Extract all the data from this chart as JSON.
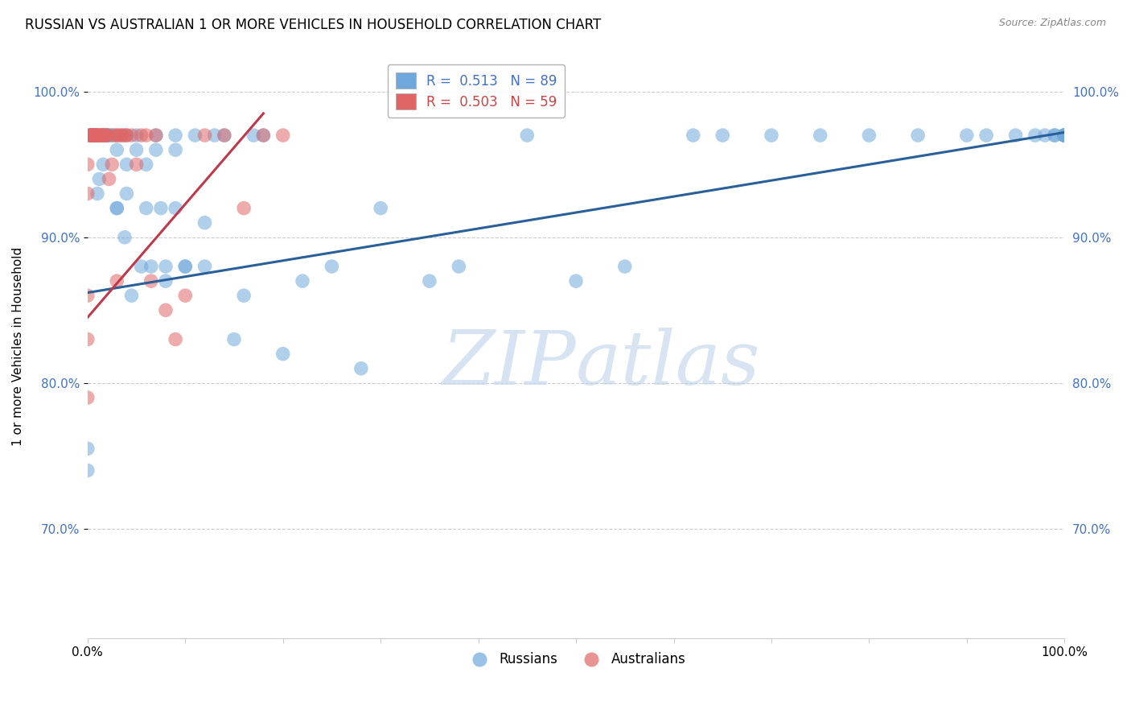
{
  "title": "RUSSIAN VS AUSTRALIAN 1 OR MORE VEHICLES IN HOUSEHOLD CORRELATION CHART",
  "source": "Source: ZipAtlas.com",
  "ylabel": "1 or more Vehicles in Household",
  "ytick_labels": [
    "100.0%",
    "90.0%",
    "80.0%",
    "70.0%"
  ],
  "ytick_values": [
    1.0,
    0.9,
    0.8,
    0.7
  ],
  "xlim": [
    0.0,
    1.0
  ],
  "ylim": [
    0.625,
    1.025
  ],
  "blue_color": "#6fa8dc",
  "pink_color": "#e06666",
  "trendline_blue": "#2a6099",
  "trendline_pink": "#c0394b",
  "watermark_zip": "ZIP",
  "watermark_atlas": "atlas",
  "russians_x": [
    0.0,
    0.0,
    0.003,
    0.003,
    0.004,
    0.004,
    0.004,
    0.005,
    0.005,
    0.005,
    0.005,
    0.006,
    0.007,
    0.008,
    0.009,
    0.01,
    0.01,
    0.012,
    0.015,
    0.015,
    0.016,
    0.018,
    0.02,
    0.02,
    0.022,
    0.025,
    0.025,
    0.03,
    0.03,
    0.03,
    0.035,
    0.038,
    0.04,
    0.04,
    0.04,
    0.045,
    0.05,
    0.05,
    0.055,
    0.06,
    0.06,
    0.065,
    0.07,
    0.07,
    0.075,
    0.08,
    0.08,
    0.09,
    0.09,
    0.09,
    0.1,
    0.1,
    0.11,
    0.12,
    0.12,
    0.13,
    0.14,
    0.15,
    0.16,
    0.17,
    0.18,
    0.2,
    0.22,
    0.25,
    0.28,
    0.3,
    0.35,
    0.38,
    0.45,
    0.5,
    0.55,
    0.62,
    0.65,
    0.7,
    0.75,
    0.8,
    0.85,
    0.9,
    0.92,
    0.95,
    0.97,
    0.98,
    0.99,
    0.99,
    1.0,
    1.0,
    1.0,
    1.0,
    1.0,
    1.0,
    1.0
  ],
  "russians_y": [
    0.74,
    0.755,
    0.97,
    0.97,
    0.97,
    0.97,
    0.97,
    0.97,
    0.97,
    0.97,
    0.97,
    0.97,
    0.97,
    0.97,
    0.97,
    0.97,
    0.93,
    0.94,
    0.97,
    0.97,
    0.95,
    0.97,
    0.97,
    0.97,
    0.97,
    0.97,
    0.97,
    0.92,
    0.92,
    0.96,
    0.97,
    0.9,
    0.93,
    0.95,
    0.97,
    0.86,
    0.97,
    0.96,
    0.88,
    0.92,
    0.95,
    0.88,
    0.96,
    0.97,
    0.92,
    0.87,
    0.88,
    0.92,
    0.96,
    0.97,
    0.88,
    0.88,
    0.97,
    0.88,
    0.91,
    0.97,
    0.97,
    0.83,
    0.86,
    0.97,
    0.97,
    0.82,
    0.87,
    0.88,
    0.81,
    0.92,
    0.87,
    0.88,
    0.97,
    0.87,
    0.88,
    0.97,
    0.97,
    0.97,
    0.97,
    0.97,
    0.97,
    0.97,
    0.97,
    0.97,
    0.97,
    0.97,
    0.97,
    0.97,
    0.97,
    0.97,
    0.97,
    0.97,
    0.97,
    0.97,
    0.97
  ],
  "australians_x": [
    0.0,
    0.0,
    0.0,
    0.0,
    0.0,
    0.0,
    0.003,
    0.004,
    0.004,
    0.005,
    0.005,
    0.006,
    0.007,
    0.007,
    0.008,
    0.008,
    0.009,
    0.01,
    0.01,
    0.012,
    0.013,
    0.015,
    0.015,
    0.015,
    0.016,
    0.018,
    0.02,
    0.02,
    0.022,
    0.025,
    0.028,
    0.03,
    0.03,
    0.032,
    0.035,
    0.038,
    0.04,
    0.045,
    0.05,
    0.055,
    0.06,
    0.065,
    0.07,
    0.08,
    0.09,
    0.1,
    0.12,
    0.14,
    0.16,
    0.18,
    0.2
  ],
  "australians_y": [
    0.79,
    0.83,
    0.86,
    0.93,
    0.95,
    0.97,
    0.97,
    0.97,
    0.97,
    0.97,
    0.97,
    0.97,
    0.97,
    0.97,
    0.97,
    0.97,
    0.97,
    0.97,
    0.97,
    0.97,
    0.97,
    0.97,
    0.97,
    0.97,
    0.97,
    0.97,
    0.97,
    0.97,
    0.94,
    0.95,
    0.97,
    0.87,
    0.97,
    0.97,
    0.97,
    0.97,
    0.97,
    0.97,
    0.95,
    0.97,
    0.97,
    0.87,
    0.97,
    0.85,
    0.83,
    0.86,
    0.97,
    0.97,
    0.92,
    0.97,
    0.97
  ],
  "blue_trend_x": [
    0.0,
    1.0
  ],
  "blue_trend_y": [
    0.862,
    0.972
  ],
  "pink_trend_x": [
    0.0,
    0.18
  ],
  "pink_trend_y": [
    0.845,
    0.985
  ]
}
